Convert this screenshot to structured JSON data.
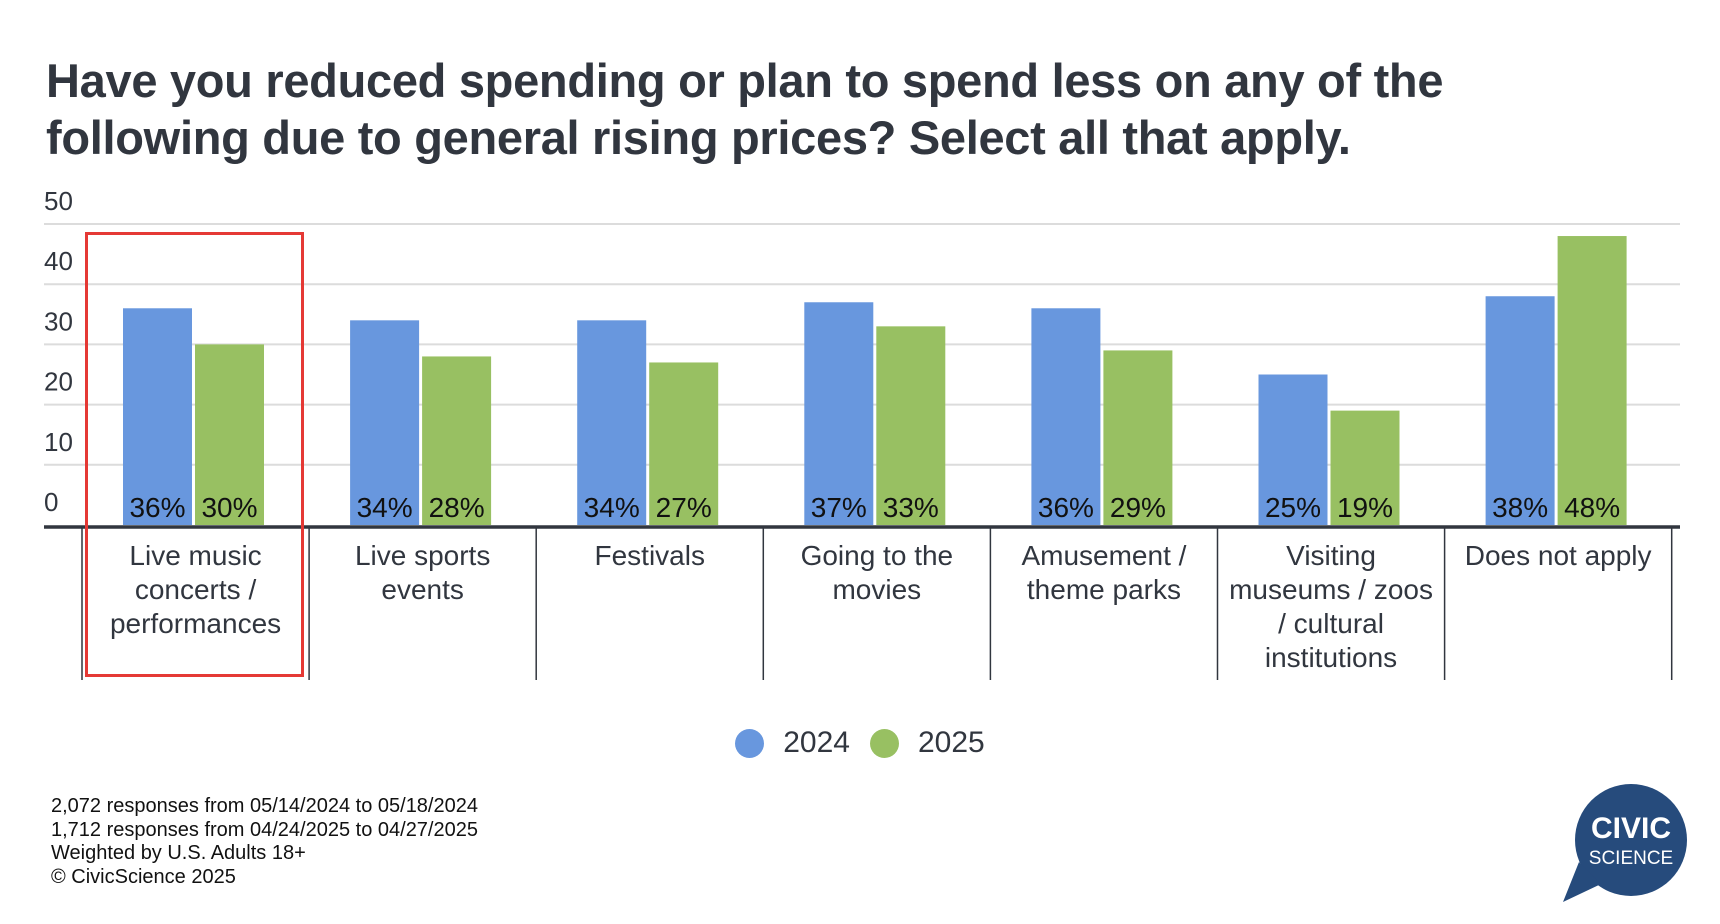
{
  "title": "Have you reduced spending or plan to spend less on any of the following due to general rising prices? Select all that apply.",
  "colors": {
    "series_2024": "#6897de",
    "series_2025": "#98c062",
    "highlight": "#e53935",
    "logo": "#264b7c",
    "text": "#31363f"
  },
  "chart_data": {
    "type": "bar",
    "title": "Have you reduced spending or plan to spend less on any of the following due to general rising prices? Select all that apply.",
    "xlabel": "",
    "ylabel": "",
    "ylim": [
      0,
      50
    ],
    "yticks": [
      "0",
      "10",
      "20",
      "30",
      "40",
      "50"
    ],
    "grid": true,
    "legend_position": "bottom-center",
    "categories": [
      "Live music concerts / performances",
      "Live sports events",
      "Festivals",
      "Going to the movies",
      "Amusement / theme parks",
      "Visiting museums / zoos / cultural institutions",
      "Does not apply"
    ],
    "series": [
      {
        "name": "2024",
        "values": [
          36,
          34,
          34,
          37,
          36,
          25,
          38
        ],
        "labels": [
          "36%",
          "34%",
          "34%",
          "37%",
          "36%",
          "25%",
          "38%"
        ]
      },
      {
        "name": "2025",
        "values": [
          30,
          28,
          27,
          33,
          29,
          19,
          48
        ],
        "labels": [
          "30%",
          "28%",
          "27%",
          "33%",
          "29%",
          "19%",
          "48%"
        ]
      }
    ],
    "highlighted_category": "Live music concerts / performances"
  },
  "category_label_lines": [
    [
      "Live music",
      "concerts /",
      "performances"
    ],
    [
      "Live sports",
      "events"
    ],
    [
      "Festivals"
    ],
    [
      "Going to the",
      "movies"
    ],
    [
      "Amusement /",
      "theme parks"
    ],
    [
      "Visiting",
      "museums / zoos",
      "/ cultural",
      "institutions"
    ],
    [
      "Does not apply"
    ]
  ],
  "legend": [
    {
      "label": "2024",
      "color": "#6897de"
    },
    {
      "label": "2025",
      "color": "#98c062"
    }
  ],
  "footer": {
    "lines": [
      "2,072 responses from 05/14/2024 to 05/18/2024",
      "1,712 responses from 04/24/2025 to 04/27/2025",
      "Weighted by U.S. Adults 18+",
      "© CivicScience 2025"
    ]
  },
  "logo": {
    "line1": "CIVIC",
    "line2": "SCIENCE"
  }
}
